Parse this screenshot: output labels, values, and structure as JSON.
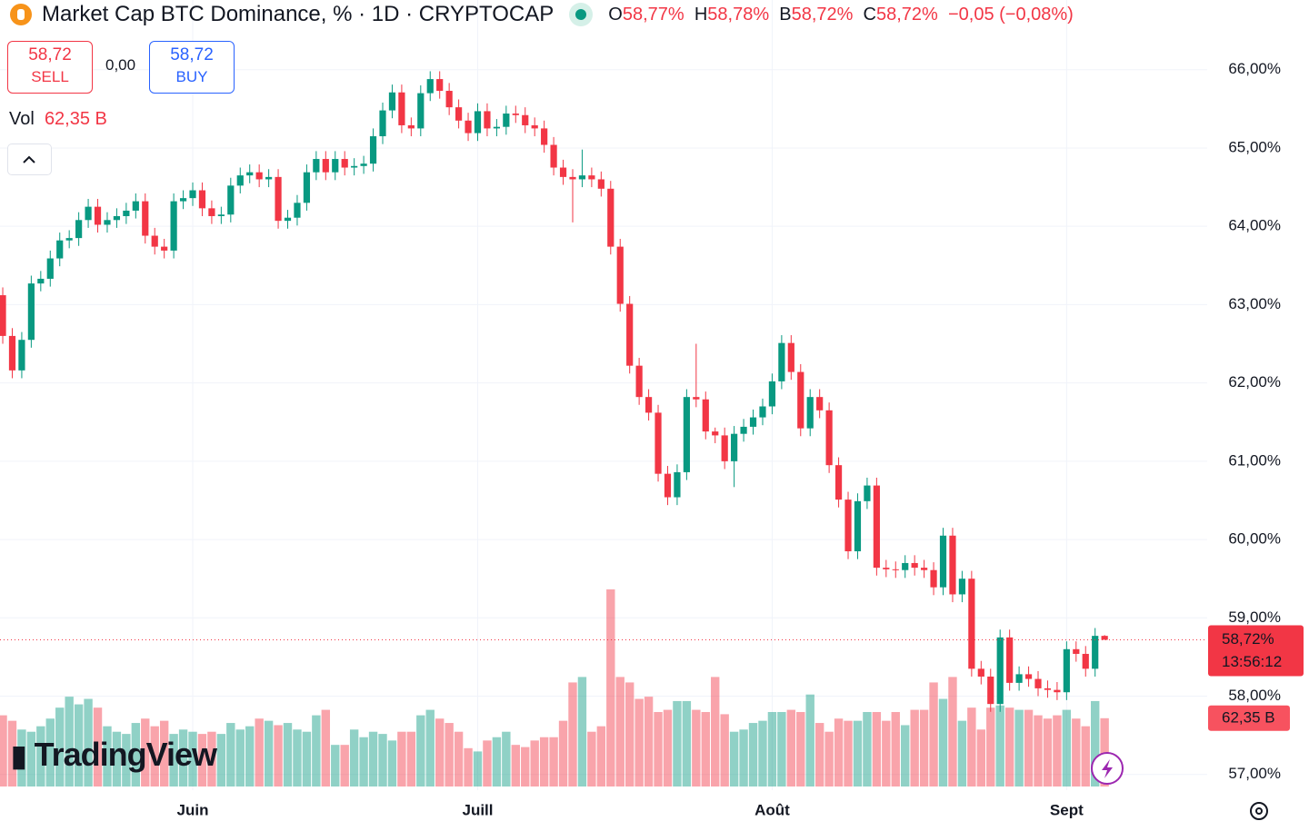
{
  "header": {
    "sell_price": "58,72",
    "sell": "SELL",
    "spread": "0,00",
    "buy_price": "58,72",
    "buy": "BUY",
    "vol_label": "Vol",
    "vol_value": "62,35 B",
    "logo": "TradingView"
  },
  "chart_data": {
    "type": "candlestick",
    "title": "Market Cap BTC Dominance, % · 1D · CRYPTOCAP",
    "legend": {
      "o_key": "O",
      "o": "58,77%",
      "h_key": "H",
      "h": "58,78%",
      "l_key": "B",
      "l": "58,72%",
      "c_key": "C",
      "c": "58,72%",
      "change": "−0,05 (−0,08%)"
    },
    "open": [
      63.12,
      62.6,
      62.16,
      62.55,
      63.27,
      63.33,
      63.59,
      63.82,
      63.85,
      64.08,
      64.25,
      64.02,
      64.08,
      64.13,
      64.2,
      64.32,
      63.88,
      63.74,
      63.69,
      64.32,
      64.36,
      64.46,
      64.23,
      64.13,
      64.15,
      64.52,
      64.65,
      64.69,
      64.6,
      64.63,
      64.07,
      64.11,
      64.3,
      64.69,
      64.86,
      64.69,
      64.86,
      64.75,
      64.77,
      64.8,
      65.15,
      65.48,
      65.71,
      65.29,
      65.25,
      65.7,
      65.88,
      65.73,
      65.52,
      65.35,
      65.19,
      65.47,
      65.25,
      65.27,
      65.44,
      65.42,
      65.29,
      65.25,
      65.04,
      64.75,
      64.63,
      64.6,
      64.65,
      64.6,
      64.48,
      63.74,
      63.01,
      62.22,
      61.82,
      61.62,
      60.84,
      60.54,
      60.86,
      61.82,
      61.79,
      61.38,
      61.33,
      61.0,
      61.35,
      61.44,
      61.56,
      61.7,
      62.02,
      62.51,
      62.14,
      61.42,
      61.82,
      61.65,
      60.95,
      60.51,
      59.85,
      60.49,
      60.69,
      59.64,
      59.62,
      59.61,
      59.7,
      59.64,
      59.61,
      59.39,
      60.05,
      59.3,
      59.5,
      58.35,
      58.25,
      57.9,
      58.75,
      58.17,
      58.28,
      58.22,
      58.1,
      58.08,
      58.05,
      58.6,
      58.54,
      58.35,
      58.77
    ],
    "high": [
      63.22,
      62.7,
      62.65,
      63.37,
      63.43,
      63.69,
      63.92,
      63.95,
      64.18,
      64.35,
      64.35,
      64.18,
      64.23,
      64.3,
      64.42,
      64.42,
      63.98,
      63.84,
      64.42,
      64.46,
      64.56,
      64.56,
      64.33,
      64.25,
      64.62,
      64.75,
      64.79,
      64.79,
      64.73,
      64.73,
      64.21,
      64.4,
      64.79,
      64.96,
      64.96,
      64.96,
      64.96,
      64.87,
      64.9,
      65.25,
      65.58,
      65.81,
      65.81,
      65.39,
      65.8,
      65.98,
      65.98,
      65.83,
      65.62,
      65.45,
      65.57,
      65.57,
      65.37,
      65.54,
      65.54,
      65.52,
      65.39,
      65.35,
      65.14,
      64.85,
      64.73,
      64.98,
      64.75,
      64.7,
      64.58,
      63.84,
      63.11,
      62.32,
      61.92,
      61.72,
      60.94,
      60.96,
      61.92,
      62.5,
      61.89,
      61.43,
      61.43,
      61.45,
      61.54,
      61.66,
      61.8,
      62.12,
      62.61,
      62.61,
      62.24,
      61.92,
      61.92,
      61.75,
      61.05,
      60.61,
      60.59,
      60.79,
      60.79,
      59.74,
      59.72,
      59.8,
      59.8,
      59.74,
      59.71,
      60.15,
      60.15,
      59.6,
      59.6,
      58.45,
      58.35,
      58.85,
      58.85,
      58.38,
      58.38,
      58.32,
      58.2,
      58.18,
      58.7,
      58.7,
      58.64,
      58.87,
      58.78
    ],
    "low": [
      62.5,
      62.06,
      62.06,
      62.45,
      63.17,
      63.23,
      63.49,
      63.72,
      63.75,
      63.98,
      63.92,
      63.92,
      63.98,
      64.03,
      64.1,
      63.78,
      63.64,
      63.59,
      63.59,
      64.22,
      64.26,
      64.13,
      64.03,
      64.03,
      64.05,
      64.42,
      64.55,
      64.5,
      64.5,
      63.97,
      63.97,
      64.01,
      64.2,
      64.59,
      64.59,
      64.59,
      64.65,
      64.65,
      64.67,
      64.7,
      65.05,
      65.38,
      65.19,
      65.15,
      65.15,
      65.6,
      65.63,
      65.42,
      65.25,
      65.09,
      65.09,
      65.15,
      65.15,
      65.17,
      65.32,
      65.19,
      65.15,
      64.94,
      64.65,
      64.53,
      64.05,
      64.5,
      64.5,
      64.38,
      63.64,
      62.91,
      62.12,
      61.72,
      61.52,
      60.74,
      60.44,
      60.44,
      60.76,
      61.69,
      61.28,
      61.23,
      60.9,
      60.67,
      61.25,
      61.34,
      61.46,
      61.6,
      61.92,
      62.04,
      61.32,
      61.32,
      61.55,
      60.85,
      60.41,
      59.75,
      59.75,
      60.39,
      59.54,
      59.52,
      59.51,
      59.51,
      59.54,
      59.51,
      59.29,
      59.29,
      59.2,
      59.2,
      58.25,
      58.15,
      57.8,
      57.8,
      58.07,
      58.07,
      58.12,
      58.0,
      57.98,
      57.95,
      57.95,
      58.44,
      58.25,
      58.25,
      58.72
    ],
    "close": [
      62.6,
      62.16,
      62.55,
      63.27,
      63.33,
      63.59,
      63.82,
      63.85,
      64.08,
      64.25,
      64.02,
      64.08,
      64.13,
      64.2,
      64.32,
      63.88,
      63.74,
      63.69,
      64.32,
      64.36,
      64.46,
      64.23,
      64.13,
      64.15,
      64.52,
      64.65,
      64.69,
      64.6,
      64.63,
      64.07,
      64.11,
      64.3,
      64.69,
      64.86,
      64.69,
      64.86,
      64.75,
      64.77,
      64.8,
      65.15,
      65.48,
      65.71,
      65.29,
      65.25,
      65.7,
      65.88,
      65.73,
      65.52,
      65.35,
      65.19,
      65.47,
      65.25,
      65.27,
      65.44,
      65.42,
      65.29,
      65.25,
      65.04,
      64.75,
      64.63,
      64.6,
      64.65,
      64.6,
      64.48,
      63.74,
      63.01,
      62.22,
      61.82,
      61.62,
      60.84,
      60.54,
      60.86,
      61.82,
      61.79,
      61.38,
      61.33,
      61.0,
      61.35,
      61.44,
      61.56,
      61.7,
      62.02,
      62.51,
      62.14,
      61.42,
      61.82,
      61.65,
      60.95,
      60.51,
      59.85,
      60.49,
      60.69,
      59.64,
      59.62,
      59.61,
      59.7,
      59.64,
      59.61,
      59.39,
      60.05,
      59.3,
      59.5,
      58.35,
      58.25,
      57.9,
      58.75,
      58.17,
      58.28,
      58.22,
      58.1,
      58.08,
      58.05,
      58.6,
      58.54,
      58.35,
      58.77,
      58.72
    ],
    "volume": [
      65,
      60,
      52,
      50,
      55,
      62,
      72,
      82,
      75,
      80,
      72,
      55,
      50,
      48,
      58,
      62,
      55,
      60,
      48,
      52,
      50,
      48,
      50,
      48,
      58,
      52,
      55,
      62,
      60,
      56,
      58,
      52,
      50,
      65,
      70,
      38,
      38,
      52,
      45,
      50,
      48,
      42,
      50,
      50,
      65,
      70,
      62,
      58,
      50,
      35,
      32,
      42,
      45,
      50,
      38,
      36,
      42,
      45,
      45,
      60,
      95,
      100,
      50,
      55,
      180,
      100,
      95,
      80,
      82,
      68,
      70,
      78,
      78,
      70,
      68,
      100,
      66,
      50,
      52,
      58,
      60,
      68,
      68,
      70,
      68,
      84,
      58,
      50,
      62,
      60,
      60,
      68,
      68,
      60,
      68,
      56,
      70,
      70,
      95,
      80,
      100,
      60,
      72,
      52,
      72,
      74,
      72,
      70,
      70,
      65,
      62,
      65,
      70,
      62,
      55,
      78,
      62.35
    ],
    "xlim": [
      -0.29,
      126.8
    ],
    "xticks": [
      {
        "value": 20,
        "label": "Juin"
      },
      {
        "value": 50,
        "label": "Juill"
      },
      {
        "value": 81,
        "label": "Août"
      },
      {
        "value": 112,
        "label": "Sept"
      }
    ],
    "ylim": [
      56.8,
      66.89
    ],
    "yticks": [
      {
        "value": 57,
        "label": "57,00%"
      },
      {
        "value": 58,
        "label": "58,00%"
      },
      {
        "value": 59,
        "label": "59,00%"
      },
      {
        "value": 60,
        "label": "60,00%"
      },
      {
        "value": 61,
        "label": "61,00%"
      },
      {
        "value": 62,
        "label": "62,00%"
      },
      {
        "value": 63,
        "label": "63,00%"
      },
      {
        "value": 64,
        "label": "64,00%"
      },
      {
        "value": 65,
        "label": "65,00%"
      },
      {
        "value": 66,
        "label": "66,00%"
      }
    ],
    "up_color": "#089981",
    "down_color": "#f23645",
    "last_price_label": "58,72%",
    "countdown": "13:56:12",
    "volume_label": "62,35 B"
  }
}
